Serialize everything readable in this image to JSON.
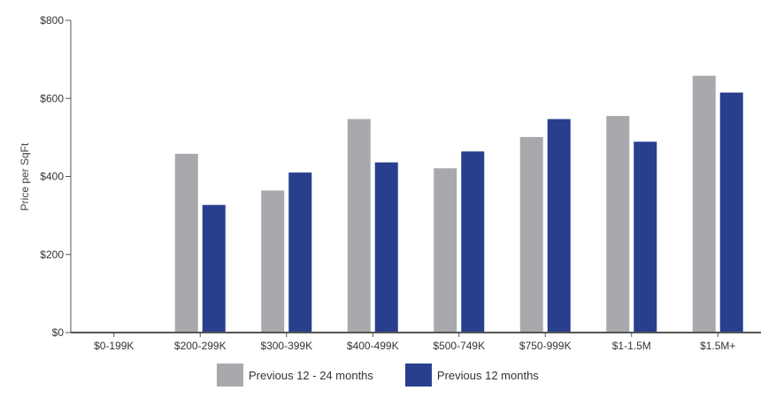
{
  "colors": {
    "series_1": "#a7a9ac",
    "series_2": "#283f8e",
    "axis": "#555555"
  },
  "chart_data": {
    "type": "bar",
    "title": "",
    "xlabel": "",
    "ylabel": "Price per SqFt",
    "ylim": [
      0,
      800
    ],
    "yticks": [
      "$0",
      "$200",
      "$400",
      "$600",
      "$800"
    ],
    "ytick_values": [
      0,
      200,
      400,
      600,
      800
    ],
    "grid": false,
    "legend_position": "bottom",
    "categories": [
      "$0-199K",
      "$200-299K",
      "$300-399K",
      "$400-499K",
      "$500-749K",
      "$750-999K",
      "$1-1.5M",
      "$1.5M+"
    ],
    "series": [
      {
        "name": "Previous 12 - 24 months",
        "values": [
          0,
          458,
          364,
          547,
          421,
          501,
          555,
          658
        ]
      },
      {
        "name": "Previous 12 months",
        "values": [
          0,
          327,
          410,
          436,
          464,
          547,
          489,
          615
        ]
      }
    ]
  }
}
